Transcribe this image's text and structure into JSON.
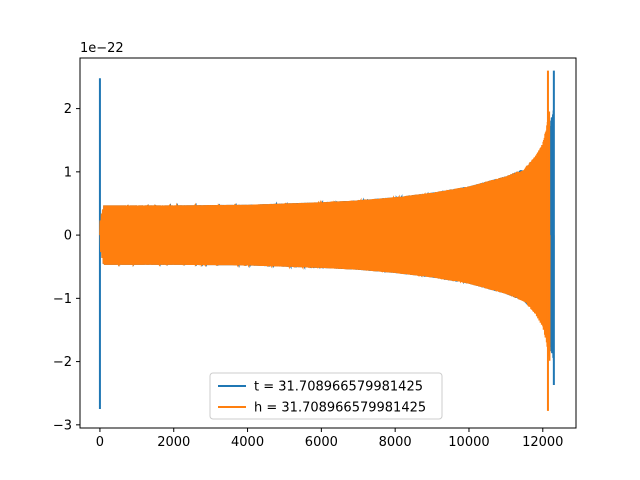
{
  "chart_data": {
    "type": "line",
    "title": "",
    "xlabel": "",
    "ylabel": "",
    "y_offset_text": "1e−22",
    "xlim": [
      -540,
      12900
    ],
    "ylim": [
      -3.05,
      2.8
    ],
    "x_ticks": [
      0,
      2000,
      4000,
      6000,
      8000,
      10000,
      12000
    ],
    "x_tick_labels": [
      "0",
      "2000",
      "4000",
      "6000",
      "8000",
      "10000",
      "12000"
    ],
    "y_ticks": [
      -3,
      -2,
      -1,
      0,
      1,
      2
    ],
    "y_tick_labels": [
      "−3",
      "−2",
      "−1",
      "0",
      "1",
      "2"
    ],
    "grid": false,
    "legend_position": "lower center",
    "series": [
      {
        "name": "t = 31.708966579981425",
        "color": "#1f77b4",
        "x_start": 0,
        "x_end": 12300,
        "spikes": [
          {
            "x": 0,
            "min": -2.75,
            "max": 2.48
          },
          {
            "x": 12300,
            "min": -2.37,
            "max": 2.6
          }
        ],
        "envelope": [
          [
            0,
            0.2
          ],
          [
            100,
            0.47
          ],
          [
            2000,
            0.47
          ],
          [
            4000,
            0.48
          ],
          [
            6000,
            0.52
          ],
          [
            7000,
            0.55
          ],
          [
            8000,
            0.6
          ],
          [
            9000,
            0.67
          ],
          [
            10000,
            0.77
          ],
          [
            11000,
            0.93
          ],
          [
            11500,
            1.05
          ],
          [
            12000,
            1.35
          ],
          [
            12150,
            1.6
          ],
          [
            12250,
            1.9
          ],
          [
            12300,
            2.0
          ]
        ]
      },
      {
        "name": "h = 31.708966579981425",
        "color": "#ff7f0e",
        "x_start": 0,
        "x_end": 12190,
        "spikes": [
          {
            "x": 12140,
            "min": -2.78,
            "max": 2.6
          }
        ],
        "envelope": [
          [
            0,
            0.2
          ],
          [
            100,
            0.47
          ],
          [
            2000,
            0.47
          ],
          [
            4000,
            0.48
          ],
          [
            6000,
            0.52
          ],
          [
            7000,
            0.55
          ],
          [
            8000,
            0.6
          ],
          [
            9000,
            0.67
          ],
          [
            10000,
            0.77
          ],
          [
            11000,
            0.93
          ],
          [
            11500,
            1.05
          ],
          [
            11800,
            1.25
          ],
          [
            12000,
            1.45
          ],
          [
            12100,
            1.7
          ],
          [
            12190,
            2.0
          ]
        ]
      }
    ]
  }
}
